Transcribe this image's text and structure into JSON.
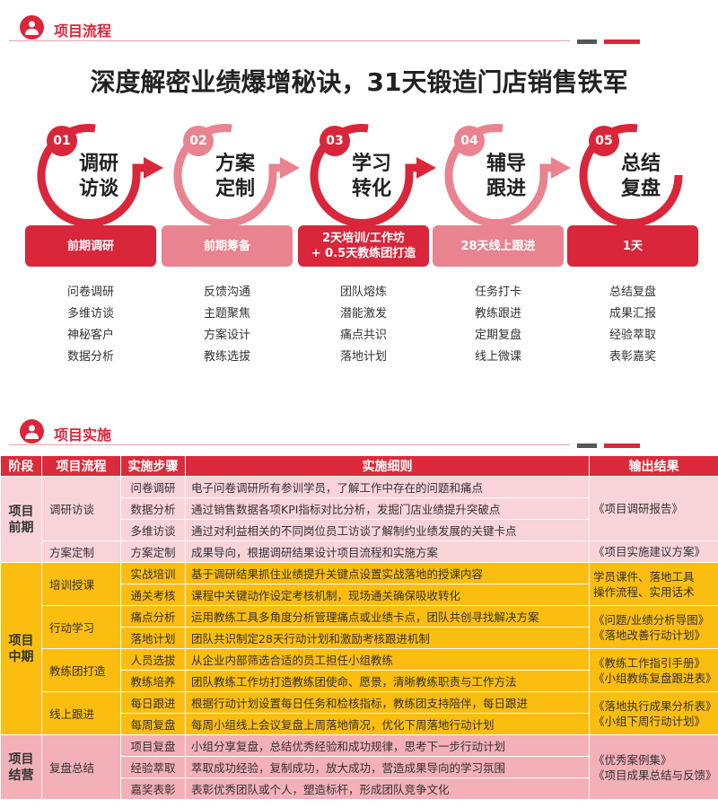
{
  "section1": {
    "title": "项目流程",
    "icon": "user-icon"
  },
  "main_title": "深度解密业绩爆增秘诀，31天锻造门店销售铁军",
  "colors": {
    "red": "#d9263a",
    "pink": "#e9838f",
    "yellow": "#fbbd10"
  },
  "steps": [
    {
      "num": "01",
      "title1": "调研",
      "title2": "访谈",
      "phase": "前期调研",
      "items": [
        "问卷调研",
        "多维访谈",
        "神秘客户",
        "数据分析"
      ],
      "color": "#d9263a"
    },
    {
      "num": "02",
      "title1": "方案",
      "title2": "定制",
      "phase": "前期筹备",
      "items": [
        "反馈沟通",
        "主题聚焦",
        "方案设计",
        "教练选拔"
      ],
      "color": "#e9838f"
    },
    {
      "num": "03",
      "title1": "学习",
      "title2": "转化",
      "phase": "2天培训/工作坊\n+ 0.5天教练团打造",
      "items": [
        "团队熔炼",
        "潜能激发",
        "痛点共识",
        "落地计划"
      ],
      "color": "#d9263a"
    },
    {
      "num": "04",
      "title1": "辅导",
      "title2": "跟进",
      "phase": "28天线上跟进",
      "items": [
        "任务打卡",
        "教练跟进",
        "定期复盘",
        "线上微课"
      ],
      "color": "#e9838f"
    },
    {
      "num": "05",
      "title1": "总结",
      "title2": "复盘",
      "phase": "1天",
      "items": [
        "总结复盘",
        "成果汇报",
        "经验萃取",
        "表彰嘉奖"
      ],
      "color": "#d9263a"
    }
  ],
  "section2": {
    "title": "项目实施",
    "icon": "user-icon"
  },
  "table": {
    "headers": [
      "阶段",
      "项目流程",
      "实施步骤",
      "实施细则",
      "输出结果"
    ],
    "stages": [
      {
        "name": "项目\n前期",
        "cls": "r-pre",
        "flows": [
          {
            "name": "调研访谈",
            "output": "《项目调研报告》",
            "steps": [
              [
                "问卷调研",
                "电子问卷调研所有参训学员，了解工作中存在的问题和痛点"
              ],
              [
                "数据分析",
                "通过销售数据各项KPI指标对比分析，发掘门店业绩提升突破点"
              ],
              [
                "多维访谈",
                "通过对利益相关的不同岗位员工访谈了解制约业绩发展的关键卡点"
              ]
            ]
          },
          {
            "name": "方案定制",
            "output": "《项目实施建议方案》",
            "steps": [
              [
                "方案定制",
                "成果导向，根据调研结果设计项目流程和实施方案"
              ]
            ]
          }
        ]
      },
      {
        "name": "项目\n中期",
        "cls": "r-mid",
        "flows": [
          {
            "name": "培训授课",
            "output": "学员课件、落地工具\n操作流程、实用话术",
            "steps": [
              [
                "实战培训",
                "基于调研结果抓住业绩提升关键点设置实战落地的授课内容"
              ],
              [
                "通关考核",
                "课程中关键动作设定考核机制，现场通关确保吸收转化"
              ]
            ]
          },
          {
            "name": "行动学习",
            "output": "《问题/业绩分析导图》\n《落地改善行动计划》",
            "steps": [
              [
                "痛点分析",
                "运用教练工具多角度分析管理痛点或业绩卡点，团队共创寻找解决方案"
              ],
              [
                "落地计划",
                "团队共识制定28天行动计划和激励考核跟进机制"
              ]
            ]
          },
          {
            "name": "教练团打造",
            "output": "《教练工作指引手册》\n《小组教练复盘跟进表》",
            "steps": [
              [
                "人员选拔",
                "从企业内部筛选合适的员工担任小组教练"
              ],
              [
                "教练培养",
                "团队教练工作坊打造教练团使命、愿景，清晰教练职责与工作方法"
              ]
            ]
          },
          {
            "name": "线上跟进",
            "output": "《落地执行成果分析表》\n《小组下周行动计划》",
            "steps": [
              [
                "每日跟进",
                "根据行动计划设置每日任务和检核指标，教练团支持陪伴，每日跟进"
              ],
              [
                "每周复盘",
                "每周小组线上会议复盘上周落地情况，优化下周落地行动计划"
              ]
            ]
          }
        ]
      },
      {
        "name": "项目\n结营",
        "cls": "r-end",
        "flows": [
          {
            "name": "复盘总结",
            "output": "《优秀案例集》\n《项目成果总结与反馈》",
            "steps": [
              [
                "项目复盘",
                "小组分享复盘，总结优秀经验和成功规律，思考下一步行动计划"
              ],
              [
                "经验萃取",
                "萃取成功经验，复制成功，放大成功，营造成果导向的学习氛围"
              ],
              [
                "嘉奖表彰",
                "表彰优秀团队或个人，塑造标杆，形成团队竞争文化"
              ]
            ]
          }
        ]
      }
    ]
  }
}
